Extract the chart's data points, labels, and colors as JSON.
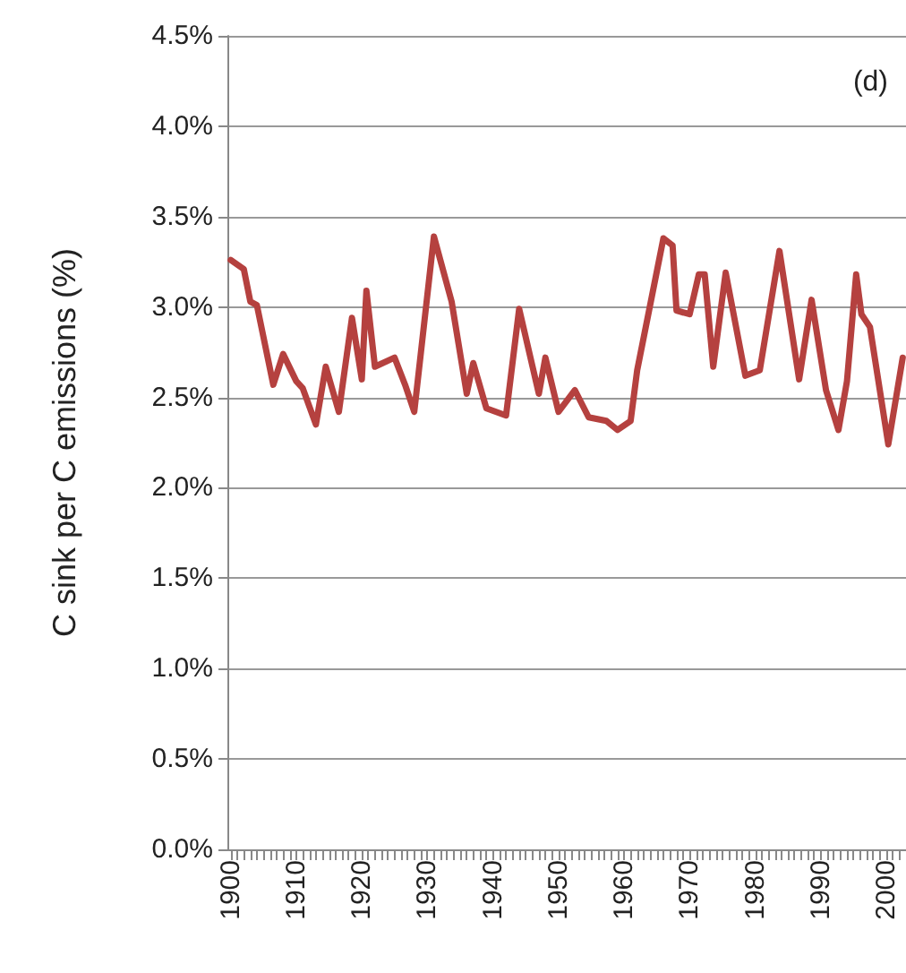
{
  "chart_data": {
    "type": "line",
    "ylabel": "C sink per C emissions (%)",
    "annotations": [
      "(d)"
    ],
    "x": [
      1900,
      1902,
      1903,
      1904,
      1906.5,
      1908,
      1910,
      1911,
      1913,
      1914.5,
      1916.5,
      1918.5,
      1920,
      1920.7,
      1922,
      1925,
      1926.6,
      1928,
      1931,
      1933.7,
      1936,
      1937,
      1939,
      1942,
      1944,
      1947,
      1948,
      1950,
      1952.5,
      1954.6,
      1957.3,
      1959,
      1961,
      1962,
      1966,
      1967.4,
      1968,
      1970,
      1971.4,
      1972.3,
      1973.6,
      1975.5,
      1978.5,
      1980.7,
      1983.7,
      1986.7,
      1988.6,
      1990.8,
      1992.7,
      1994,
      1995.4,
      1996.2,
      1997.5,
      2000.3,
      2002.5
    ],
    "series": [
      {
        "color": "#b5413f",
        "values": [
          3.26,
          3.21,
          3.03,
          3.01,
          2.57,
          2.74,
          2.59,
          2.55,
          2.35,
          2.67,
          2.42,
          2.94,
          2.6,
          3.09,
          2.67,
          2.72,
          2.57,
          2.42,
          3.39,
          3.03,
          2.52,
          2.69,
          2.44,
          2.4,
          2.99,
          2.52,
          2.72,
          2.42,
          2.54,
          2.39,
          2.37,
          2.32,
          2.37,
          2.65,
          3.38,
          3.34,
          2.98,
          2.96,
          3.18,
          3.18,
          2.67,
          3.19,
          2.62,
          2.65,
          3.31,
          2.6,
          3.04,
          2.54,
          2.32,
          2.59,
          3.18,
          2.96,
          2.89,
          2.24,
          2.72
        ]
      }
    ],
    "xlim": [
      1899.5,
      2003
    ],
    "xticks": [
      1900,
      1910,
      1920,
      1930,
      1940,
      1950,
      1960,
      1970,
      1980,
      1990,
      2000
    ],
    "ylim": [
      0,
      4.5
    ],
    "yticks": [
      {
        "value": 0,
        "label": "0.0%"
      },
      {
        "value": 0.5,
        "label": "0.5%"
      },
      {
        "value": 1,
        "label": "1.0%"
      },
      {
        "value": 1.5,
        "label": "1.5%"
      },
      {
        "value": 2,
        "label": "2.0%"
      },
      {
        "value": 2.5,
        "label": "2.5%"
      },
      {
        "value": 3,
        "label": "3.0%"
      },
      {
        "value": 3.5,
        "label": "3.5%"
      },
      {
        "value": 4,
        "label": "4.0%"
      },
      {
        "value": 4.5,
        "label": "4.5%"
      }
    ],
    "grid": "y",
    "marker": "none",
    "line_style": "solid"
  }
}
